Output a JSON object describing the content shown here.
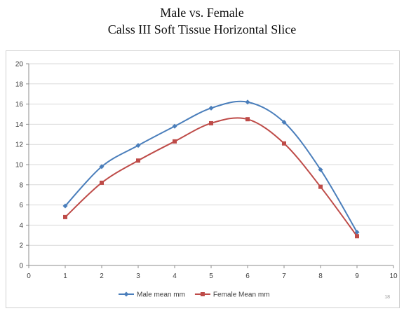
{
  "slide": {
    "title_line1": "Male vs. Female",
    "title_line2": "Calss III Soft Tissue Horizontal Slice",
    "page_number": "18"
  },
  "chart_data": {
    "type": "line",
    "x": [
      1,
      2,
      3,
      4,
      5,
      6,
      7,
      8,
      9
    ],
    "series": [
      {
        "name": "Male mean mm",
        "color": "#4a7ebb",
        "marker": "diamond",
        "values": [
          5.9,
          9.8,
          11.9,
          13.8,
          15.6,
          16.2,
          14.2,
          9.5,
          3.3
        ]
      },
      {
        "name": "Female Mean mm",
        "color": "#be4b48",
        "marker": "square",
        "values": [
          4.8,
          8.2,
          10.4,
          12.3,
          14.1,
          14.5,
          12.1,
          7.8,
          2.9
        ]
      }
    ],
    "xlim": [
      0,
      10
    ],
    "ylim": [
      0,
      20
    ],
    "xticks": [
      0,
      1,
      2,
      3,
      4,
      5,
      6,
      7,
      8,
      9,
      10
    ],
    "yticks": [
      0,
      2,
      4,
      6,
      8,
      10,
      12,
      14,
      16,
      18,
      20
    ],
    "grid": true,
    "legend_position": "bottom",
    "smooth": true
  }
}
